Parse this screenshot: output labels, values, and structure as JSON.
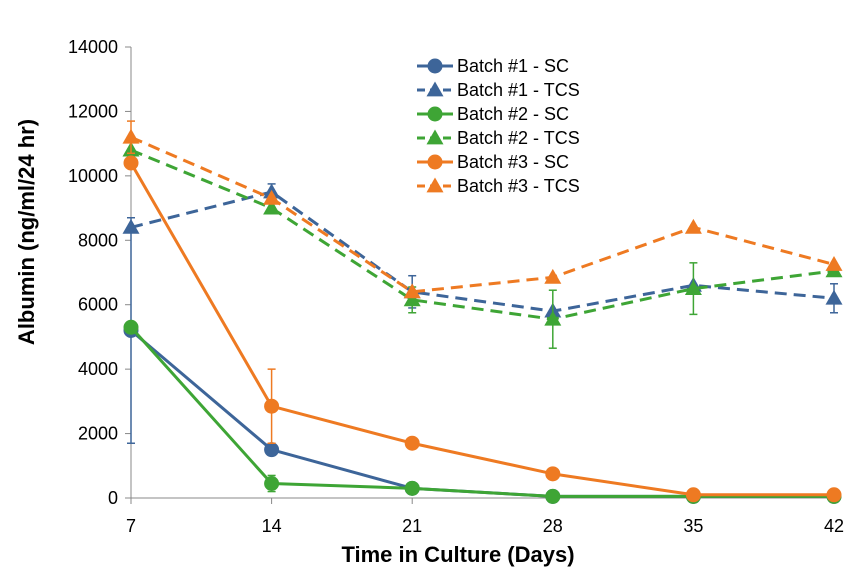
{
  "chart_data": {
    "type": "line",
    "title": "",
    "xlabel": "Time in Culture (Days)",
    "ylabel": "Albumin (ng/ml/24 hr)",
    "x": [
      7,
      14,
      21,
      28,
      35,
      42
    ],
    "x_tick_labels": [
      "7",
      "14",
      "21",
      "28",
      "35",
      "42"
    ],
    "ylim": [
      0,
      14000
    ],
    "y_ticks": [
      0,
      2000,
      4000,
      6000,
      8000,
      10000,
      12000,
      14000
    ],
    "y_tick_labels": [
      "0",
      "2000",
      "4000",
      "6000",
      "8000",
      "10000",
      "12000",
      "14000"
    ],
    "grid": false,
    "legend_position": "top-center",
    "series": [
      {
        "name": "Batch #1 - SC",
        "color": "#3d6599",
        "dash": "solid",
        "marker": "circle",
        "values": [
          5200,
          1500,
          300,
          50,
          50,
          50
        ],
        "error": [
          3500,
          0,
          0,
          0,
          0,
          0
        ]
      },
      {
        "name": "Batch #1 - TCS",
        "color": "#3d6599",
        "dash": "dashed",
        "marker": "triangle",
        "values": [
          8400,
          9500,
          6400,
          5800,
          6600,
          6200
        ],
        "error": [
          0,
          250,
          500,
          0,
          0,
          450
        ]
      },
      {
        "name": "Batch #2 - SC",
        "color": "#3ea535",
        "dash": "solid",
        "marker": "circle",
        "values": [
          5300,
          450,
          300,
          50,
          50,
          50
        ],
        "error": [
          0,
          250,
          0,
          0,
          0,
          0
        ]
      },
      {
        "name": "Batch #2 - TCS",
        "color": "#3ea535",
        "dash": "dashed",
        "marker": "triangle",
        "values": [
          10800,
          9000,
          6150,
          5550,
          6500,
          7050
        ],
        "error": [
          0,
          0,
          400,
          900,
          800,
          0
        ]
      },
      {
        "name": "Batch #3 - SC",
        "color": "#ee7a22",
        "dash": "solid",
        "marker": "circle",
        "values": [
          10400,
          2850,
          1700,
          750,
          100,
          100
        ],
        "error": [
          0,
          1150,
          0,
          0,
          0,
          0
        ]
      },
      {
        "name": "Batch #3 - TCS",
        "color": "#ee7a22",
        "dash": "dashed",
        "marker": "triangle",
        "values": [
          11200,
          9300,
          6400,
          6850,
          8400,
          7250
        ],
        "error": [
          500,
          0,
          0,
          0,
          0,
          0
        ]
      }
    ]
  }
}
